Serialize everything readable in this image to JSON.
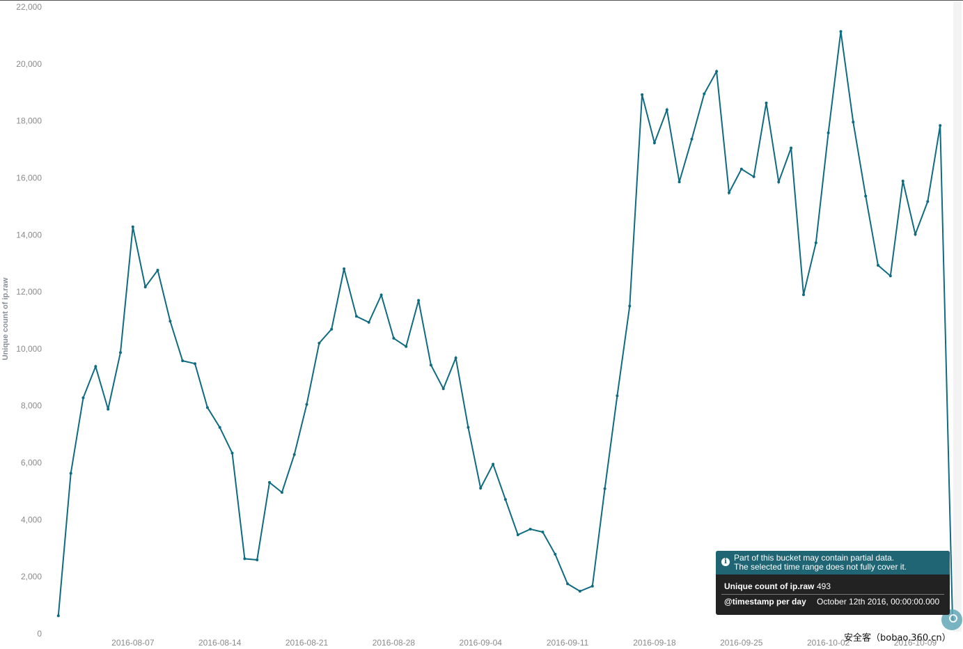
{
  "chart_data": {
    "type": "line",
    "ylabel": "Unique count of ip.raw",
    "xlabel": "",
    "ylim": [
      0,
      22000
    ],
    "y_ticks": [
      "0",
      "2,000",
      "4,000",
      "6,000",
      "8,000",
      "10,000",
      "12,000",
      "14,000",
      "16,000",
      "18,000",
      "20,000",
      "22,000"
    ],
    "y_tick_values": [
      0,
      2000,
      4000,
      6000,
      8000,
      10000,
      12000,
      14000,
      16000,
      18000,
      20000,
      22000
    ],
    "x_range": [
      "2016-07-31",
      "2016-10-12"
    ],
    "x_ticks": [
      "2016-08-07",
      "2016-08-14",
      "2016-08-21",
      "2016-08-28",
      "2016-09-04",
      "2016-09-11",
      "2016-09-18",
      "2016-09-25",
      "2016-10-02",
      "2016-10-09"
    ],
    "line_color": "#0e6b80",
    "grid": false,
    "series": [
      {
        "x": [
          "2016-08-01",
          "2016-08-02",
          "2016-08-03",
          "2016-08-04",
          "2016-08-05",
          "2016-08-06",
          "2016-08-07",
          "2016-08-08",
          "2016-08-09",
          "2016-08-10",
          "2016-08-11",
          "2016-08-12",
          "2016-08-13",
          "2016-08-14",
          "2016-08-15",
          "2016-08-16",
          "2016-08-17",
          "2016-08-18",
          "2016-08-19",
          "2016-08-20",
          "2016-08-21",
          "2016-08-22",
          "2016-08-23",
          "2016-08-24",
          "2016-08-25",
          "2016-08-26",
          "2016-08-27",
          "2016-08-28",
          "2016-08-29",
          "2016-08-30",
          "2016-08-31",
          "2016-09-01",
          "2016-09-02",
          "2016-09-03",
          "2016-09-04",
          "2016-09-05",
          "2016-09-06",
          "2016-09-07",
          "2016-09-08",
          "2016-09-09",
          "2016-09-10",
          "2016-09-11",
          "2016-09-12",
          "2016-09-13",
          "2016-09-14",
          "2016-09-15",
          "2016-09-16",
          "2016-09-17",
          "2016-09-18",
          "2016-09-19",
          "2016-09-20",
          "2016-09-21",
          "2016-09-22",
          "2016-09-23",
          "2016-09-24",
          "2016-09-25",
          "2016-09-26",
          "2016-09-27",
          "2016-09-28",
          "2016-09-29",
          "2016-09-30",
          "2016-10-01",
          "2016-10-02",
          "2016-10-03",
          "2016-10-04",
          "2016-10-05",
          "2016-10-06",
          "2016-10-07",
          "2016-10-08",
          "2016-10-09",
          "2016-10-10",
          "2016-10-11",
          "2016-10-12"
        ],
        "values": [
          630,
          5630,
          8280,
          9380,
          7880,
          9870,
          14280,
          12170,
          12760,
          10970,
          9580,
          9480,
          7940,
          7240,
          6340,
          2630,
          2590,
          5310,
          4960,
          6290,
          8050,
          10200,
          10690,
          12810,
          11140,
          10930,
          11890,
          10370,
          10080,
          11700,
          9430,
          8600,
          9680,
          7240,
          5110,
          5950,
          4710,
          3470,
          3670,
          3570,
          2790,
          1750,
          1490,
          1670,
          5090,
          8350,
          11500,
          18920,
          17230,
          18390,
          15860,
          17360,
          18950,
          19740,
          15480,
          16310,
          16040,
          18630,
          15860,
          17050,
          11900,
          13720,
          17580,
          21140,
          17960,
          15360,
          12930,
          12560,
          15890,
          14020,
          15170,
          17840,
          493
        ]
      }
    ]
  },
  "tooltip": {
    "warning_line1": "Part of this bucket may contain partial data.",
    "warning_line2": "The selected time range does not fully cover it.",
    "info_icon": "i",
    "row1_key": "Unique count of ip.raw",
    "row1_value": "493",
    "row2_key": "@timestamp per day",
    "row2_value": "October 12th 2016, 00:00:00.000"
  },
  "watermark": "安全客（bobao.360.cn）"
}
